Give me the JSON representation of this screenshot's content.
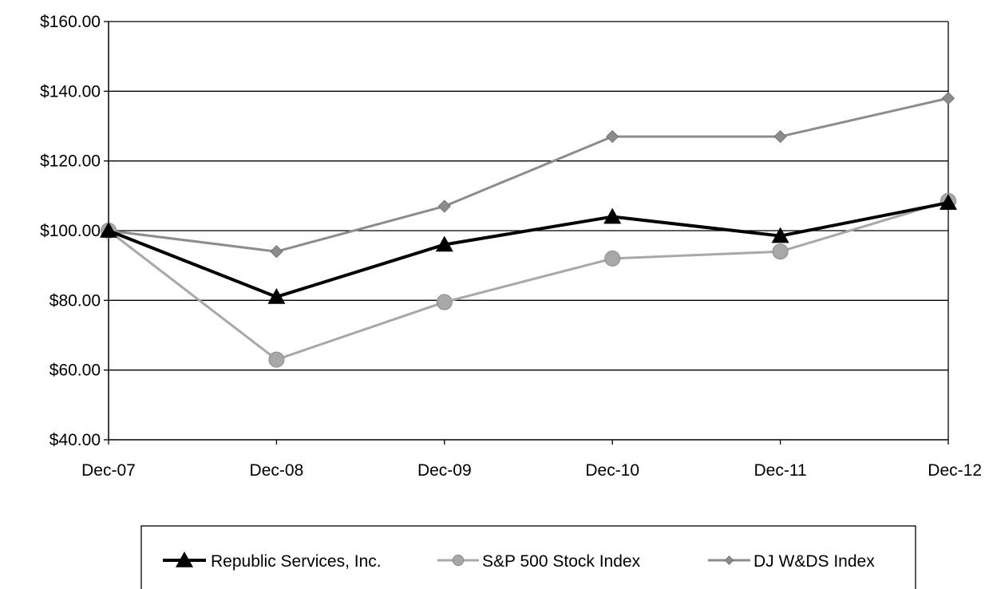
{
  "chart_data": {
    "type": "line",
    "title": "",
    "xlabel": "",
    "ylabel": "",
    "categories": [
      "Dec-07",
      "Dec-08",
      "Dec-09",
      "Dec-10",
      "Dec-11",
      "Dec-12"
    ],
    "ylim": [
      40,
      160
    ],
    "yticks": [
      40,
      60,
      80,
      100,
      120,
      140,
      160
    ],
    "ytick_labels": [
      "$40.00",
      "$60.00",
      "$80.00",
      "$100.00",
      "$120.00",
      "$140.00",
      "$160.00"
    ],
    "grid": true,
    "legend_position": "bottom",
    "series": [
      {
        "name": "Republic Services, Inc.",
        "values": [
          100,
          81,
          96,
          104,
          98.5,
          108
        ],
        "color": "#000000",
        "marker": "triangle"
      },
      {
        "name": "S&P 500 Stock Index",
        "values": [
          100,
          63,
          79.5,
          92,
          94,
          108.5
        ],
        "color": "#a8a8a8",
        "marker": "circle"
      },
      {
        "name": "DJ W&DS Index",
        "values": [
          100,
          94,
          107,
          127,
          127,
          138
        ],
        "color": "#8c8c8c",
        "marker": "diamond"
      }
    ]
  }
}
